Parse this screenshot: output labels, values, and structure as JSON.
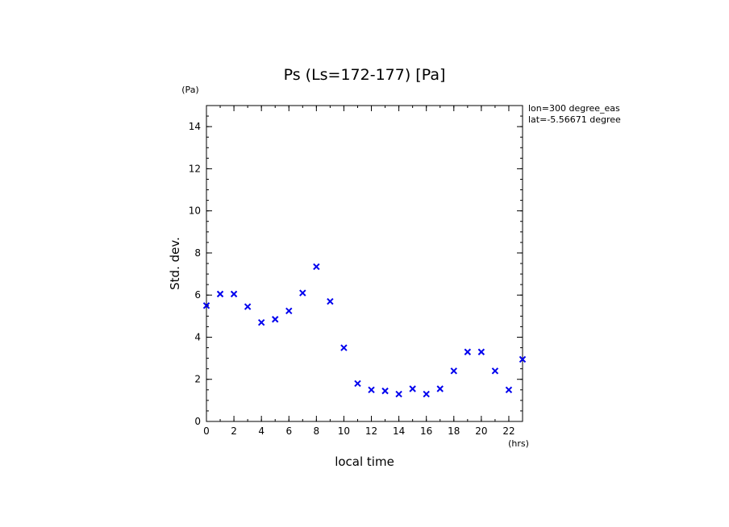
{
  "chart_data": {
    "type": "scatter",
    "title": "Ps (Ls=172-177) [Pa]",
    "xlabel": "local time",
    "ylabel": "Std. dev.",
    "x_unit": "(hrs)",
    "y_unit": "(Pa)",
    "xlim": [
      0,
      23
    ],
    "ylim": [
      0,
      15
    ],
    "x_ticks": [
      0,
      2,
      4,
      6,
      8,
      10,
      12,
      14,
      16,
      18,
      20,
      22
    ],
    "x_tick_labels": [
      "0",
      "2",
      "4",
      "6",
      "8",
      "10",
      "12",
      "14",
      "16",
      "18",
      "20",
      "22"
    ],
    "y_ticks": [
      0,
      2,
      4,
      6,
      8,
      10,
      12,
      14
    ],
    "y_tick_labels": [
      "0",
      "2",
      "4",
      "6",
      "8",
      "10",
      "12",
      "14"
    ],
    "annotations": [
      "lon=300 degree_eas",
      "lat=-5.56671 degree"
    ],
    "marker": "x",
    "marker_color": "#0000ee",
    "grid": false,
    "series": [
      {
        "name": "Std. dev.",
        "x": [
          0,
          1,
          2,
          3,
          4,
          5,
          6,
          7,
          8,
          9,
          10,
          11,
          12,
          13,
          14,
          15,
          16,
          17,
          18,
          19,
          20,
          21,
          22,
          23
        ],
        "values": [
          5.5,
          6.05,
          6.05,
          5.45,
          4.7,
          4.85,
          5.25,
          6.1,
          7.35,
          5.7,
          3.5,
          1.8,
          1.5,
          1.45,
          1.3,
          1.55,
          1.3,
          1.55,
          2.4,
          3.3,
          3.3,
          2.4,
          1.5,
          2.95
        ]
      }
    ]
  }
}
